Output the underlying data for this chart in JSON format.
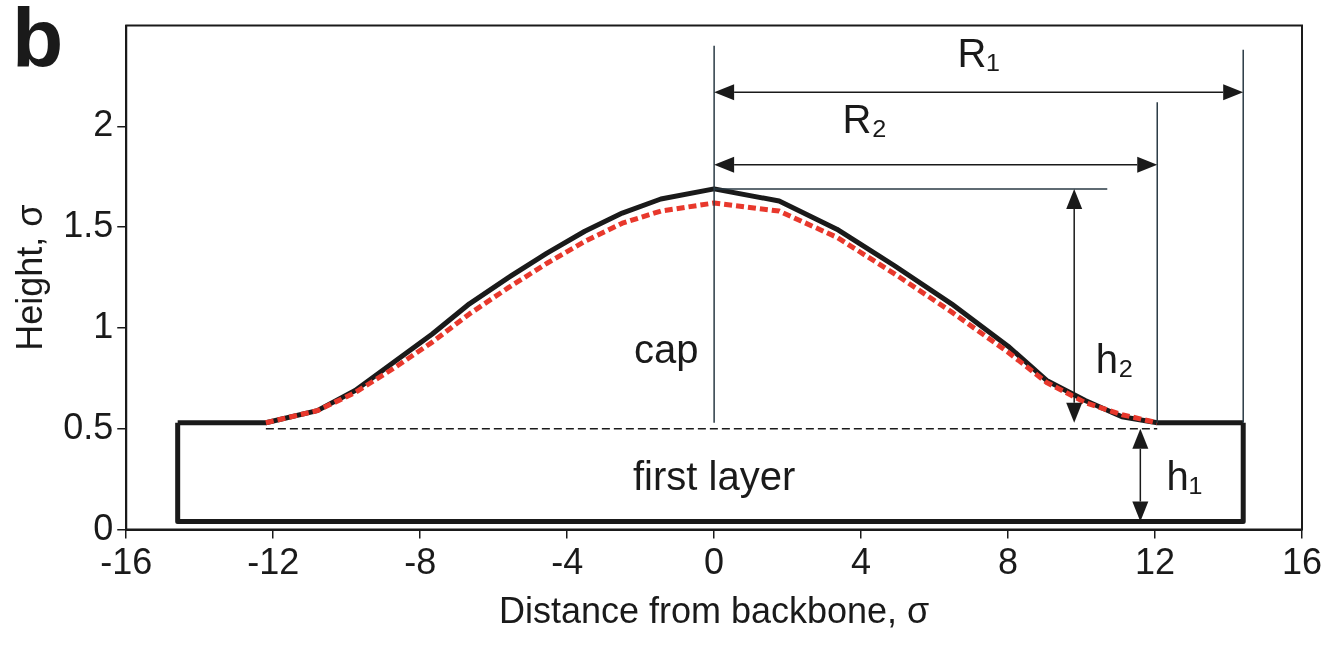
{
  "chart_data": {
    "type": "line",
    "title": "b",
    "xlabel": "Distance from backbone, σ",
    "ylabel": "Height, σ",
    "xlim": [
      -16,
      16
    ],
    "xticks": [
      -16,
      -12,
      -8,
      -4,
      0,
      4,
      8,
      12,
      16
    ],
    "ylim": [
      0,
      2.5
    ],
    "yticks": [
      0,
      0.5,
      1,
      1.5,
      2
    ],
    "grid": false,
    "legend": false,
    "marker": "none",
    "series": [
      {
        "color": "#1a1a1a",
        "line_style": "solid",
        "x": [
          -14.6,
          -12.2,
          -10.8,
          -9.77,
          -8.72,
          -7.67,
          -6.66,
          -5.6,
          -4.56,
          -3.52,
          -2.5,
          -1.45,
          0,
          1.77,
          3.34,
          4.9,
          6.46,
          8.0,
          9.05,
          10.1,
          11.1,
          12.06,
          14.4
        ],
        "values": [
          0.53,
          0.53,
          0.59,
          0.69,
          0.83,
          0.97,
          1.12,
          1.25,
          1.37,
          1.48,
          1.57,
          1.64,
          1.69,
          1.63,
          1.49,
          1.31,
          1.12,
          0.91,
          0.74,
          0.64,
          0.56,
          0.53,
          0.53
        ]
      },
      {
        "color": "#e8382c",
        "line_style": "dashed",
        "x": [
          -12.2,
          -10.8,
          -9.77,
          -8.72,
          -7.67,
          -6.66,
          -5.6,
          -4.56,
          -3.52,
          -2.5,
          -1.45,
          0,
          1.77,
          3.34,
          4.9,
          6.46,
          8.0,
          9.05,
          10.1,
          11.1,
          12.06
        ],
        "values": [
          0.53,
          0.59,
          0.68,
          0.8,
          0.93,
          1.07,
          1.2,
          1.32,
          1.43,
          1.52,
          1.58,
          1.62,
          1.58,
          1.45,
          1.27,
          1.08,
          0.88,
          0.73,
          0.63,
          0.57,
          0.53
        ]
      }
    ],
    "ref_lines": [
      {
        "axis": "y",
        "value": 0.5,
        "color": "#1a1a1a",
        "line_style": "dashed"
      }
    ],
    "annotations": [
      "R₁",
      "R₂",
      "h₂",
      "h₁",
      "cap",
      "first layer"
    ]
  }
}
